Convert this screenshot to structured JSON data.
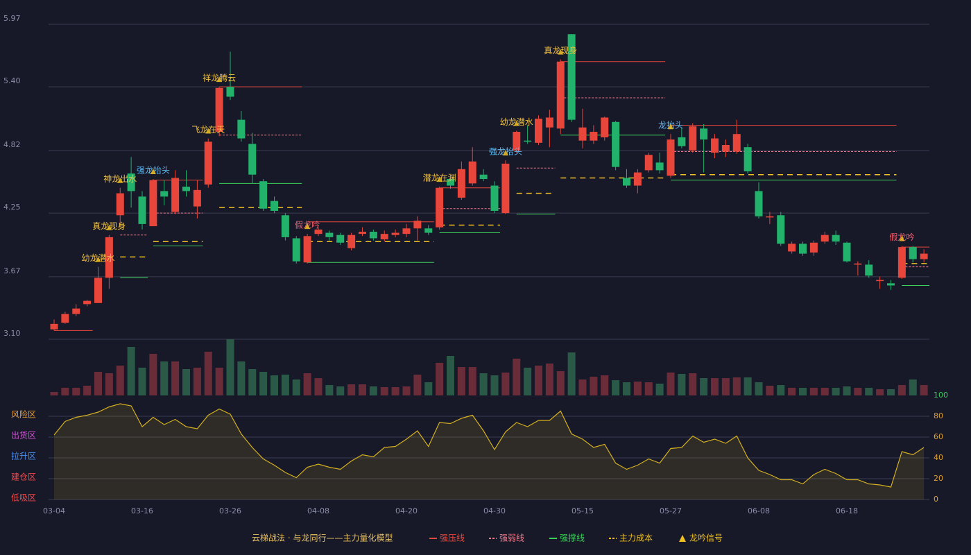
{
  "chart_data": {
    "type": "candlestick",
    "title": "云梯战法 · 与龙同行——主力量化模型",
    "categories": [
      "03-04",
      null,
      null,
      null,
      null,
      null,
      null,
      null,
      "03-16",
      null,
      null,
      null,
      null,
      null,
      null,
      null,
      "03-26",
      null,
      null,
      null,
      null,
      null,
      null,
      null,
      "04-08",
      null,
      null,
      null,
      null,
      null,
      null,
      null,
      "04-20",
      null,
      null,
      null,
      null,
      null,
      null,
      null,
      "04-30",
      null,
      null,
      null,
      null,
      null,
      null,
      null,
      "05-15",
      null,
      null,
      null,
      null,
      null,
      null,
      null,
      "05-27",
      null,
      null,
      null,
      null,
      null,
      null,
      null,
      "06-08",
      null,
      null,
      null,
      null,
      null,
      null,
      null,
      "06-18",
      null,
      null,
      null,
      null,
      null,
      null,
      null
    ],
    "open": [
      3.19,
      3.25,
      3.33,
      3.42,
      3.43,
      3.66,
      4.23,
      4.61,
      4.4,
      4.13,
      4.45,
      4.26,
      4.49,
      4.31,
      4.51,
      4.99,
      5.4,
      5.1,
      4.88,
      4.54,
      4.36,
      4.23,
      4.02,
      3.8,
      4.06,
      4.07,
      4.05,
      3.93,
      4.06,
      4.08,
      4.01,
      4.05,
      4.06,
      4.11,
      4.11,
      4.12,
      4.56,
      4.39,
      4.52,
      4.6,
      4.5,
      4.25,
      4.82,
      4.91,
      4.89,
      5.03,
      5.02,
      5.88,
      4.91,
      4.91,
      4.94,
      5.08,
      4.57,
      4.5,
      4.64,
      4.71,
      4.59,
      4.94,
      4.82,
      5.02,
      4.8,
      4.81,
      4.81,
      4.85,
      4.45,
      4.21,
      4.23,
      3.9,
      3.97,
      3.89,
      3.99,
      4.05,
      3.98,
      3.78,
      3.78,
      3.63,
      3.61,
      3.66,
      3.94,
      3.83
    ],
    "high": [
      3.28,
      3.35,
      3.42,
      3.46,
      3.76,
      4.05,
      4.48,
      4.76,
      4.45,
      4.56,
      4.55,
      4.64,
      4.64,
      4.55,
      4.93,
      5.4,
      5.72,
      5.18,
      4.98,
      4.56,
      4.4,
      4.25,
      4.04,
      4.06,
      4.12,
      4.09,
      4.07,
      4.07,
      4.12,
      4.1,
      4.09,
      4.1,
      4.15,
      4.22,
      4.14,
      4.49,
      4.6,
      4.72,
      4.85,
      4.65,
      4.54,
      4.73,
      5.0,
      5.05,
      5.14,
      5.19,
      5.65,
      5.88,
      5.2,
      5.05,
      5.13,
      5.09,
      4.65,
      4.65,
      4.8,
      4.8,
      4.97,
      5.03,
      5.07,
      5.06,
      4.97,
      4.92,
      5.1,
      4.88,
      4.53,
      4.26,
      4.26,
      3.99,
      3.99,
      4.0,
      4.08,
      4.09,
      3.99,
      3.81,
      3.82,
      3.67,
      3.64,
      3.95,
      3.95,
      3.92
    ],
    "low": [
      3.18,
      3.24,
      3.31,
      3.4,
      3.43,
      3.56,
      4.12,
      4.3,
      4.1,
      4.13,
      4.32,
      4.24,
      4.4,
      4.2,
      4.48,
      4.95,
      5.28,
      4.9,
      4.52,
      4.27,
      4.25,
      4.0,
      3.79,
      3.79,
      4.04,
      4.0,
      3.96,
      3.91,
      4.04,
      4.0,
      3.99,
      4.03,
      4.03,
      4.0,
      4.05,
      4.1,
      4.47,
      4.37,
      4.5,
      4.54,
      4.25,
      4.24,
      4.8,
      4.88,
      4.87,
      4.85,
      4.97,
      5.08,
      4.84,
      4.88,
      4.91,
      4.64,
      4.48,
      4.43,
      4.62,
      4.61,
      4.57,
      4.84,
      4.8,
      4.62,
      4.75,
      4.76,
      4.79,
      4.61,
      4.2,
      4.15,
      3.95,
      3.88,
      3.86,
      3.86,
      3.97,
      3.96,
      3.8,
      3.68,
      3.66,
      3.56,
      3.55,
      3.65,
      3.8,
      3.8
    ],
    "close": [
      3.24,
      3.33,
      3.38,
      3.45,
      3.66,
      4.03,
      4.43,
      4.45,
      4.15,
      4.55,
      4.4,
      4.57,
      4.45,
      4.46,
      4.9,
      5.39,
      5.31,
      4.93,
      4.6,
      4.29,
      4.27,
      4.03,
      3.81,
      4.04,
      4.1,
      4.03,
      3.98,
      4.05,
      4.08,
      4.02,
      4.06,
      4.07,
      4.11,
      4.18,
      4.07,
      4.48,
      4.5,
      4.65,
      4.72,
      4.56,
      4.27,
      4.7,
      4.99,
      4.9,
      5.11,
      5.12,
      5.63,
      5.1,
      5.03,
      4.99,
      5.12,
      4.67,
      4.5,
      4.62,
      4.78,
      4.64,
      4.92,
      4.86,
      5.04,
      4.92,
      4.93,
      4.87,
      4.97,
      4.63,
      4.22,
      4.22,
      3.97,
      3.97,
      3.88,
      3.98,
      4.05,
      3.99,
      3.81,
      3.79,
      3.68,
      3.64,
      3.59,
      3.94,
      3.83,
      3.88
    ],
    "volume": [
      5,
      11,
      11,
      14,
      34,
      32,
      43,
      70,
      40,
      60,
      49,
      49,
      38,
      40,
      63,
      40,
      81,
      49,
      38,
      34,
      29,
      30,
      23,
      32,
      25,
      15,
      13,
      16,
      16,
      13,
      12,
      12,
      13,
      30,
      19,
      47,
      57,
      41,
      41,
      32,
      29,
      33,
      53,
      40,
      43,
      46,
      35,
      62,
      23,
      27,
      29,
      22,
      19,
      20,
      19,
      17,
      33,
      31,
      32,
      25,
      25,
      25,
      26,
      26,
      19,
      14,
      15,
      11,
      11,
      11,
      11,
      11,
      13,
      11,
      11,
      9,
      9,
      15,
      23,
      15
    ],
    "colors": {
      "up": "#e8463a",
      "down": "#22b26b",
      "volume_up": "#6b2c3a",
      "volume_down": "#2a5a47"
    },
    "ylim": [
      3.1,
      5.97
    ],
    "yticks": [
      {
        "value": 3.1,
        "label": "3.10"
      },
      3.67,
      4.25,
      4.82,
      {
        "value": 5.4,
        "label": "5.40"
      },
      5.97
    ],
    "levels": [
      {
        "name": "强压线",
        "color": "#e8463a",
        "dash": false,
        "segments": [
          {
            "from": 0,
            "to": 3,
            "value": 3.18
          },
          {
            "from": 9,
            "to": 13,
            "value": 4.55
          },
          {
            "from": 15,
            "to": 22,
            "value": 5.4
          },
          {
            "from": 23,
            "to": 34,
            "value": 4.17
          },
          {
            "from": 35,
            "to": 40,
            "value": 4.48
          },
          {
            "from": 46,
            "to": 55,
            "value": 5.63
          },
          {
            "from": 56,
            "to": 76,
            "value": 5.05
          },
          {
            "from": 77,
            "to": 79,
            "value": 3.94
          }
        ]
      },
      {
        "name": "强弱线",
        "color": "#f07888",
        "dash": true,
        "segments": [
          {
            "from": 6,
            "to": 8,
            "value": 4.05
          },
          {
            "from": 9,
            "to": 13,
            "value": 4.25
          },
          {
            "from": 15,
            "to": 22,
            "value": 4.96
          },
          {
            "from": 35,
            "to": 40,
            "value": 4.29
          },
          {
            "from": 42,
            "to": 45,
            "value": 4.66
          },
          {
            "from": 46,
            "to": 55,
            "value": 5.3
          },
          {
            "from": 56,
            "to": 76,
            "value": 4.81
          },
          {
            "from": 77,
            "to": 79,
            "value": 3.76
          }
        ]
      },
      {
        "name": "强撑线",
        "color": "#3ccf5a",
        "dash": false,
        "segments": [
          {
            "from": 6,
            "to": 8,
            "value": 3.66
          },
          {
            "from": 9,
            "to": 13,
            "value": 3.95
          },
          {
            "from": 15,
            "to": 22,
            "value": 4.52
          },
          {
            "from": 23,
            "to": 34,
            "value": 3.8
          },
          {
            "from": 35,
            "to": 40,
            "value": 4.07
          },
          {
            "from": 42,
            "to": 45,
            "value": 4.24
          },
          {
            "from": 46,
            "to": 55,
            "value": 4.96
          },
          {
            "from": 56,
            "to": 76,
            "value": 4.55
          },
          {
            "from": 77,
            "to": 79,
            "value": 3.59
          }
        ]
      },
      {
        "name": "主力成本",
        "color": "#f0c020",
        "dash": true,
        "segments": [
          {
            "from": 6,
            "to": 8,
            "value": 3.85
          },
          {
            "from": 9,
            "to": 13,
            "value": 3.99
          },
          {
            "from": 15,
            "to": 22,
            "value": 4.3
          },
          {
            "from": 23,
            "to": 34,
            "value": 3.99
          },
          {
            "from": 35,
            "to": 40,
            "value": 4.14
          },
          {
            "from": 42,
            "to": 45,
            "value": 4.43
          },
          {
            "from": 46,
            "to": 55,
            "value": 4.57
          },
          {
            "from": 56,
            "to": 76,
            "value": 4.6
          },
          {
            "from": 77,
            "to": 79,
            "value": 3.79
          }
        ]
      }
    ],
    "signals": {
      "name": "龙吟信号",
      "color": "#f0c020",
      "items": [
        {
          "index": 4,
          "label": "幼龙潜水",
          "color": "#f0c040"
        },
        {
          "index": 5,
          "label": "真龙现身",
          "color": "#f0c040"
        },
        {
          "index": 6,
          "label": "神龙出水",
          "color": "#f0c040"
        },
        {
          "index": 9,
          "label": "强龙抬头",
          "color": "#5fb8f0"
        },
        {
          "index": 14,
          "label": "飞龙在天",
          "color": "#f0c040"
        },
        {
          "index": 15,
          "label": "祥龙腾云",
          "color": "#f0c040"
        },
        {
          "index": 23,
          "label": "假龙吟",
          "color": "#f06070"
        },
        {
          "index": 35,
          "label": "潜龙在渊",
          "color": "#f0c040"
        },
        {
          "index": 41,
          "label": "强龙抬头",
          "color": "#5fb8f0"
        },
        {
          "index": 42,
          "label": "幼龙潜水",
          "color": "#f0c040"
        },
        {
          "index": 46,
          "label": "真龙现身",
          "color": "#f0c040"
        },
        {
          "index": 56,
          "label": "龙抬头",
          "color": "#5fb8f0"
        },
        {
          "index": 77,
          "label": "假龙吟",
          "color": "#f06070"
        }
      ]
    },
    "indicator": {
      "values": [
        62,
        75,
        79,
        81,
        84,
        89,
        92,
        90,
        70,
        79,
        72,
        77,
        70,
        68,
        81,
        87,
        82,
        63,
        50,
        39,
        33,
        26,
        21,
        31,
        34,
        31,
        29,
        37,
        43,
        41,
        50,
        51,
        58,
        66,
        51,
        74,
        73,
        78,
        81,
        66,
        48,
        65,
        74,
        70,
        76,
        76,
        85,
        63,
        58,
        50,
        53,
        35,
        29,
        33,
        39,
        35,
        49,
        50,
        61,
        55,
        58,
        54,
        61,
        40,
        28,
        24,
        19,
        19,
        15,
        24,
        29,
        25,
        19,
        19,
        15,
        14,
        12,
        46,
        43,
        50
      ],
      "color": "#d4b020",
      "ylim": [
        0,
        100
      ],
      "yticks": [
        0,
        20,
        40,
        60,
        80,
        100
      ],
      "zones": [
        {
          "value": 80,
          "label": "风险区",
          "color": "#f0a030"
        },
        {
          "value": 60,
          "label": "出货区",
          "color": "#e050e0"
        },
        {
          "value": 40,
          "label": "拉升区",
          "color": "#4a90f0"
        },
        {
          "value": 20,
          "label": "建仓区",
          "color": "#f04848"
        },
        {
          "value": 0,
          "label": "低吸区",
          "color": "#f04848"
        }
      ]
    }
  }
}
